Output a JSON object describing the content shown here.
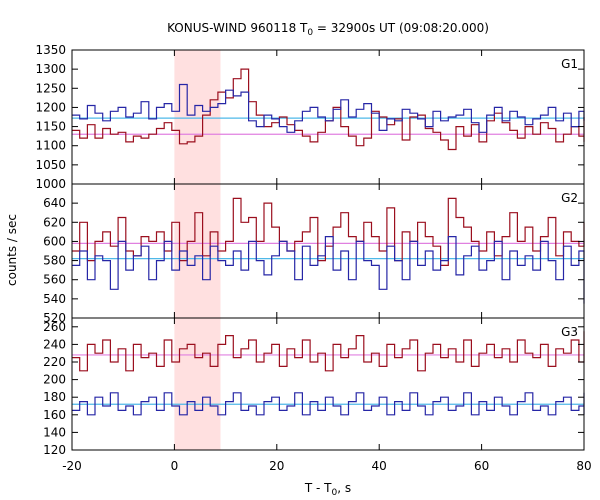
{
  "chart_data": {
    "type": "line",
    "title_main": "KONUS-WIND 960118 T",
    "title_sub": "0",
    "title_rest": " = 32900s UT (09:08:20.000)",
    "xlabel_main": "T - T",
    "xlabel_sub": "0",
    "xlabel_rest": ", s",
    "ylabel": "counts / sec",
    "xlim": [
      -20,
      80
    ],
    "x_ticks": [
      -20,
      0,
      20,
      40,
      60,
      80
    ],
    "highlight_interval": [
      0,
      9
    ],
    "colors": {
      "dark_series": "#9b0f1e",
      "blue_series": "#2626a6",
      "dark_background": "#e080e0",
      "blue_background": "#4fb8e8",
      "highlight": "#ffe0e0"
    },
    "panels": [
      {
        "name": "G1",
        "ylim": [
          1000,
          1350
        ],
        "y_ticks": [
          1000,
          1050,
          1100,
          1150,
          1200,
          1250,
          1300,
          1350
        ],
        "background_levels": {
          "dark": 1130,
          "blue": 1172
        },
        "series": [
          {
            "color_key": "dark_series",
            "step": 1.5,
            "values": [
              1140,
              1120,
              1155,
              1120,
              1145,
              1130,
              1135,
              1110,
              1125,
              1120,
              1130,
              1145,
              1160,
              1140,
              1105,
              1110,
              1125,
              1180,
              1220,
              1240,
              1225,
              1275,
              1300,
              1215,
              1180,
              1150,
              1160,
              1175,
              1155,
              1140,
              1125,
              1110,
              1135,
              1165,
              1200,
              1150,
              1125,
              1100,
              1120,
              1190,
              1175,
              1155,
              1170,
              1115,
              1175,
              1180,
              1145,
              1135,
              1115,
              1090,
              1150,
              1125,
              1155,
              1110,
              1165,
              1185,
              1160,
              1140,
              1120,
              1150,
              1130,
              1160,
              1145,
              1110,
              1130,
              1150,
              1125,
              1175,
              1110,
              1150
            ]
          },
          {
            "color_key": "blue_series",
            "step": 1.5,
            "values": [
              1180,
              1170,
              1205,
              1185,
              1165,
              1190,
              1200,
              1175,
              1185,
              1215,
              1170,
              1200,
              1210,
              1190,
              1260,
              1180,
              1205,
              1190,
              1200,
              1210,
              1245,
              1230,
              1240,
              1165,
              1150,
              1180,
              1170,
              1150,
              1135,
              1165,
              1190,
              1200,
              1175,
              1165,
              1195,
              1220,
              1175,
              1195,
              1210,
              1185,
              1140,
              1170,
              1165,
              1195,
              1185,
              1170,
              1150,
              1190,
              1165,
              1175,
              1180,
              1195,
              1160,
              1135,
              1180,
              1200,
              1165,
              1190,
              1175,
              1155,
              1170,
              1180,
              1200,
              1165,
              1185,
              1150,
              1190,
              1170,
              1175,
              1165
            ]
          }
        ]
      },
      {
        "name": "G2",
        "ylim": [
          520,
          660
        ],
        "y_ticks": [
          520,
          540,
          560,
          580,
          600,
          620,
          640
        ],
        "background_levels": {
          "dark": 598,
          "blue": 582
        },
        "series": [
          {
            "color_key": "dark_series",
            "step": 1.5,
            "values": [
              590,
              620,
              580,
              600,
              610,
              595,
              625,
              590,
              585,
              605,
              600,
              610,
              590,
              620,
              580,
              600,
              630,
              585,
              610,
              590,
              600,
              645,
              620,
              625,
              600,
              640,
              615,
              600,
              590,
              600,
              610,
              625,
              580,
              595,
              615,
              630,
              605,
              600,
              620,
              605,
              590,
              635,
              580,
              610,
              600,
              620,
              605,
              595,
              575,
              645,
              625,
              615,
              600,
              590,
              610,
              585,
              605,
              630,
              600,
              615,
              590,
              605,
              625,
              585,
              610,
              600,
              595,
              620,
              605,
              600
            ]
          },
          {
            "color_key": "blue_series",
            "step": 1.5,
            "values": [
              575,
              590,
              560,
              585,
              580,
              550,
              600,
              570,
              585,
              595,
              560,
              580,
              600,
              570,
              590,
              575,
              585,
              560,
              595,
              580,
              575,
              590,
              570,
              600,
              580,
              565,
              585,
              600,
              590,
              560,
              595,
              575,
              585,
              605,
              570,
              590,
              560,
              600,
              580,
              575,
              550,
              595,
              580,
              560,
              600,
              575,
              590,
              570,
              580,
              605,
              565,
              585,
              595,
              570,
              580,
              600,
              560,
              590,
              575,
              585,
              570,
              600,
              580,
              560,
              595,
              575,
              590,
              565,
              580,
              535
            ]
          }
        ]
      },
      {
        "name": "G3",
        "ylim": [
          120,
          270
        ],
        "y_ticks": [
          120,
          140,
          160,
          180,
          200,
          220,
          240,
          260
        ],
        "background_levels": {
          "dark": 228,
          "blue": 172
        },
        "series": [
          {
            "color_key": "dark_series",
            "step": 1.5,
            "values": [
              225,
              210,
              240,
              230,
              245,
              220,
              235,
              210,
              240,
              225,
              230,
              215,
              245,
              220,
              235,
              240,
              225,
              230,
              215,
              240,
              250,
              225,
              235,
              245,
              220,
              230,
              240,
              215,
              235,
              225,
              245,
              220,
              230,
              210,
              240,
              225,
              235,
              250,
              220,
              230,
              215,
              240,
              225,
              235,
              245,
              210,
              230,
              240,
              225,
              235,
              220,
              245,
              215,
              230,
              240,
              225,
              235,
              220,
              245,
              230,
              225,
              240,
              215,
              235,
              230,
              245,
              220,
              235,
              255,
              240
            ]
          },
          {
            "color_key": "blue_series",
            "step": 1.5,
            "values": [
              165,
              175,
              160,
              180,
              170,
              185,
              165,
              170,
              160,
              175,
              180,
              165,
              185,
              170,
              160,
              175,
              165,
              180,
              170,
              160,
              175,
              185,
              165,
              170,
              160,
              175,
              180,
              165,
              170,
              185,
              160,
              175,
              165,
              180,
              170,
              160,
              175,
              185,
              165,
              170,
              180,
              160,
              175,
              165,
              185,
              170,
              160,
              175,
              180,
              165,
              170,
              185,
              160,
              175,
              165,
              180,
              170,
              160,
              175,
              185,
              165,
              170,
              160,
              175,
              180,
              165,
              170,
              185,
              160,
              175
            ]
          }
        ]
      }
    ]
  }
}
